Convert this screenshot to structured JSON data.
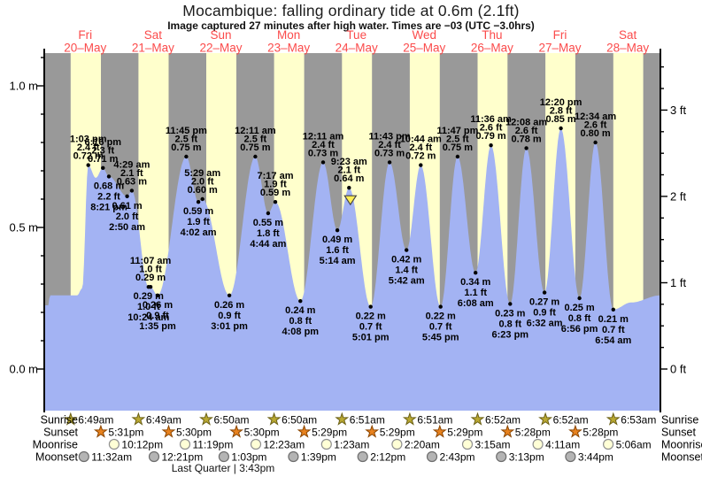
{
  "chart_data": {
    "type": "area",
    "title": "Mocambique: falling  ordinary tide at 0.6m (2.1ft)",
    "subtitle": "Image captured 27 minutes after high water. Times are −03 (UTC −3.0hrs)",
    "days": [
      {
        "name": "Fri",
        "date": "20–May"
      },
      {
        "name": "Sat",
        "date": "21–May"
      },
      {
        "name": "Sun",
        "date": "22–May"
      },
      {
        "name": "Mon",
        "date": "23–May"
      },
      {
        "name": "Tue",
        "date": "24–May"
      },
      {
        "name": "Wed",
        "date": "25–May"
      },
      {
        "name": "Thu",
        "date": "26–May"
      },
      {
        "name": "Fri",
        "date": "27–May"
      },
      {
        "name": "Sat",
        "date": "28–May"
      }
    ],
    "y_axis_left": {
      "tick_labels": [
        "0.0 m",
        "0.5 m",
        "1.0 m"
      ],
      "tick_values": [
        0,
        0.5,
        1
      ]
    },
    "y_axis_right": {
      "tick_labels": [
        "0 ft",
        "1 ft",
        "2 ft",
        "3 ft"
      ],
      "tick_values": [
        0,
        1,
        2,
        3
      ]
    },
    "tide_events": [
      {
        "day": 0,
        "time": "1:03 pm",
        "height_ft": "2.4 ft",
        "height_m": "0.72 m",
        "type": "H"
      },
      {
        "day": 0,
        "time": "6:16 pm",
        "height_ft": "2.3 ft",
        "height_m": "0.71 m",
        "type": "H"
      },
      {
        "day": 0,
        "time": "8:21 pm",
        "height_ft": "2.2 ft",
        "height_m": "0.68 m",
        "type": "L"
      },
      {
        "day": 1,
        "time": "2:50 am",
        "height_ft": "2.0 ft",
        "height_m": "0.61 m",
        "type": "L"
      },
      {
        "day": 1,
        "time": "4:29 am",
        "height_ft": "2.1 ft",
        "height_m": "0.63 m",
        "type": "H"
      },
      {
        "day": 1,
        "time": "10:24 am",
        "height_ft": "1.0 ft",
        "height_m": "0.29 m",
        "type": "L"
      },
      {
        "day": 1,
        "time": "11:07 am",
        "height_ft": "1.0 ft",
        "height_m": "0.29 m",
        "type": "H"
      },
      {
        "day": 1,
        "time": "1:35 pm",
        "height_ft": "0.9 ft",
        "height_m": "0.26 m",
        "type": "L"
      },
      {
        "day": 1,
        "time": "11:45 pm",
        "height_ft": "2.5 ft",
        "height_m": "0.75 m",
        "type": "H"
      },
      {
        "day": 2,
        "time": "4:02 am",
        "height_ft": "1.9 ft",
        "height_m": "0.59 m",
        "type": "L"
      },
      {
        "day": 2,
        "time": "5:29 am",
        "height_ft": "2.0 ft",
        "height_m": "0.60 m",
        "type": "H"
      },
      {
        "day": 2,
        "time": "3:01 pm",
        "height_ft": "0.9 ft",
        "height_m": "0.26 m",
        "type": "L"
      },
      {
        "day": 3,
        "time": "12:11 am",
        "height_ft": "2.5 ft",
        "height_m": "0.75 m",
        "type": "H"
      },
      {
        "day": 3,
        "time": "4:44 am",
        "height_ft": "1.8 ft",
        "height_m": "0.55 m",
        "type": "L"
      },
      {
        "day": 3,
        "time": "7:17 am",
        "height_ft": "1.9 ft",
        "height_m": "0.59 m",
        "type": "H"
      },
      {
        "day": 3,
        "time": "4:08 pm",
        "height_ft": "0.8 ft",
        "height_m": "0.24 m",
        "type": "L"
      },
      {
        "day": 4,
        "time": "12:11 am",
        "height_ft": "2.4 ft",
        "height_m": "0.73 m",
        "type": "H"
      },
      {
        "day": 4,
        "time": "5:14 am",
        "height_ft": "1.6 ft",
        "height_m": "0.49 m",
        "type": "L"
      },
      {
        "day": 4,
        "time": "9:23 am",
        "height_ft": "2.1 ft",
        "height_m": "0.64 m",
        "type": "H"
      },
      {
        "day": 4,
        "time": "5:01 pm",
        "height_ft": "0.7 ft",
        "height_m": "0.22 m",
        "type": "L"
      },
      {
        "day": 4,
        "time": "11:43 pm",
        "height_ft": "2.4 ft",
        "height_m": "0.73 m",
        "type": "H"
      },
      {
        "day": 5,
        "time": "5:42 am",
        "height_ft": "1.4 ft",
        "height_m": "0.42 m",
        "type": "L"
      },
      {
        "day": 5,
        "time": "10:44 am",
        "height_ft": "2.4 ft",
        "height_m": "0.72 m",
        "type": "H"
      },
      {
        "day": 5,
        "time": "5:45 pm",
        "height_ft": "0.7 ft",
        "height_m": "0.22 m",
        "type": "L"
      },
      {
        "day": 5,
        "time": "11:47 pm",
        "height_ft": "2.5 ft",
        "height_m": "0.75 m",
        "type": "H"
      },
      {
        "day": 6,
        "time": "6:08 am",
        "height_ft": "1.1 ft",
        "height_m": "0.34 m",
        "type": "L"
      },
      {
        "day": 6,
        "time": "11:36 am",
        "height_ft": "2.6 ft",
        "height_m": "0.79 m",
        "type": "H"
      },
      {
        "day": 6,
        "time": "6:23 pm",
        "height_ft": "0.8 ft",
        "height_m": "0.23 m",
        "type": "L"
      },
      {
        "day": 7,
        "time": "12:08 am",
        "height_ft": "2.6 ft",
        "height_m": "0.78 m",
        "type": "H"
      },
      {
        "day": 7,
        "time": "6:32 am",
        "height_ft": "0.9 ft",
        "height_m": "0.27 m",
        "type": "L"
      },
      {
        "day": 7,
        "time": "12:20 pm",
        "height_ft": "2.8 ft",
        "height_m": "0.85 m",
        "type": "H"
      },
      {
        "day": 7,
        "time": "6:56 pm",
        "height_ft": "0.8 ft",
        "height_m": "0.25 m",
        "type": "L"
      },
      {
        "day": 8,
        "time": "12:34 am",
        "height_ft": "2.6 ft",
        "height_m": "0.80 m",
        "type": "H"
      },
      {
        "day": 8,
        "time": "6:54 am",
        "height_ft": "0.7 ft",
        "height_m": "0.21 m",
        "type": "L"
      }
    ],
    "curve_shape_points": [
      {
        "t": -0.11,
        "m": 0.225
      },
      {
        "t": -0.045,
        "m": 0.225
      },
      {
        "t": -0.02,
        "m": 0.26
      },
      {
        "t": 0.38,
        "m": 0.26
      },
      {
        "t": 0.455,
        "m": 0.285
      },
      {
        "t": 0.655,
        "m": 0.675
      },
      {
        "t": 8.55,
        "m": 0.235
      },
      {
        "t": 8.98,
        "m": 0.26
      }
    ],
    "now_marker": {
      "day": 4,
      "ref_time": "9:23 am",
      "offset_minutes": 27,
      "height_m": 0.64
    },
    "astro": {
      "left_labels": [
        "Sunrise",
        "Sunset",
        "Moonrise",
        "Moonset"
      ],
      "right_labels": [
        "Sunrise",
        "Sunset",
        "Moonrise",
        "Moonset"
      ],
      "sunrise": [
        {
          "day": 0,
          "time": "6:49am"
        },
        {
          "day": 1,
          "time": "6:49am"
        },
        {
          "day": 2,
          "time": "6:50am"
        },
        {
          "day": 3,
          "time": "6:50am"
        },
        {
          "day": 4,
          "time": "6:51am"
        },
        {
          "day": 5,
          "time": "6:51am"
        },
        {
          "day": 6,
          "time": "6:52am"
        },
        {
          "day": 7,
          "time": "6:52am"
        },
        {
          "day": 8,
          "time": "6:53am"
        }
      ],
      "sunset": [
        {
          "day": 0,
          "time": "5:31pm"
        },
        {
          "day": 1,
          "time": "5:30pm"
        },
        {
          "day": 2,
          "time": "5:30pm"
        },
        {
          "day": 3,
          "time": "5:29pm"
        },
        {
          "day": 4,
          "time": "5:29pm"
        },
        {
          "day": 5,
          "time": "5:29pm"
        },
        {
          "day": 6,
          "time": "5:28pm"
        },
        {
          "day": 7,
          "time": "5:28pm"
        }
      ],
      "moonrise": [
        {
          "day": 0,
          "time": "10:12pm"
        },
        {
          "day": 1,
          "time": "11:19pm"
        },
        {
          "day": 3,
          "time": "12:23am"
        },
        {
          "day": 4,
          "time": "1:23am"
        },
        {
          "day": 5,
          "time": "2:20am"
        },
        {
          "day": 6,
          "time": "3:15am"
        },
        {
          "day": 7,
          "time": "4:11am"
        },
        {
          "day": 8,
          "time": "5:06am"
        }
      ],
      "moonset": [
        {
          "day": 0,
          "time": "11:32am"
        },
        {
          "day": 1,
          "time": "12:21pm"
        },
        {
          "day": 2,
          "time": "1:03pm"
        },
        {
          "day": 3,
          "time": "1:39pm"
        },
        {
          "day": 4,
          "time": "2:12pm"
        },
        {
          "day": 5,
          "time": "2:43pm"
        },
        {
          "day": 6,
          "time": "3:13pm"
        },
        {
          "day": 7,
          "time": "3:44pm"
        }
      ],
      "moon_phase": "Last Quarter | 3:43pm"
    },
    "colors": {
      "daylight": "#ffffcc",
      "night": "#999999",
      "tide_fill": "#a3b3f3",
      "day_label": "#fb4b4b",
      "sunrise_star": "#b9a832",
      "sunset_star": "#e8821e",
      "moonrise_icon": "#ffffd6",
      "moonset_icon": "#b4b4b4",
      "marker": "#ffee55"
    }
  }
}
